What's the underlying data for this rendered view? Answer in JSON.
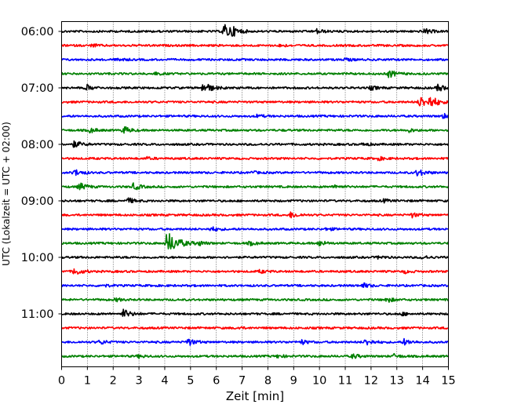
{
  "chart_data": {
    "type": "line",
    "title": "",
    "xlabel": "Zeit  [min]",
    "ylabel": "UTC (Lokalzeit = UTC + 02:00)",
    "xlim": [
      0,
      15
    ],
    "x_ticks": [
      "0",
      "1",
      "2",
      "3",
      "4",
      "5",
      "6",
      "7",
      "8",
      "9",
      "10",
      "11",
      "12",
      "13",
      "14",
      "15"
    ],
    "y_tick_labels": [
      "06:00",
      "07:00",
      "08:00",
      "09:00",
      "10:00",
      "11:00"
    ],
    "grid": "vertical dotted lines at each minute",
    "trace_colors": [
      "#000000",
      "#ff0000",
      "#0000ff",
      "#008000"
    ],
    "traces": [
      {
        "start": "06:00",
        "events": [
          {
            "t": 6.3,
            "amp": 1.0
          },
          {
            "t": 6.6,
            "amp": 0.4
          },
          {
            "t": 9.9,
            "amp": 0.3
          },
          {
            "t": 14.1,
            "amp": 0.35
          }
        ]
      },
      {
        "start": "06:15",
        "events": [
          {
            "t": 1.2,
            "amp": 0.2
          },
          {
            "t": 8.5,
            "amp": 0.15
          }
        ]
      },
      {
        "start": "06:30",
        "events": [
          {
            "t": 2.2,
            "amp": 0.2
          },
          {
            "t": 11.0,
            "amp": 0.2
          }
        ]
      },
      {
        "start": "06:45",
        "events": [
          {
            "t": 3.6,
            "amp": 0.15
          },
          {
            "t": 12.7,
            "amp": 0.5
          }
        ]
      },
      {
        "start": "07:00",
        "events": [
          {
            "t": 1.0,
            "amp": 0.35
          },
          {
            "t": 5.5,
            "amp": 0.8
          },
          {
            "t": 12.0,
            "amp": 0.25
          },
          {
            "t": 14.6,
            "amp": 0.45
          }
        ]
      },
      {
        "start": "07:15",
        "events": [
          {
            "t": 13.9,
            "amp": 0.8
          },
          {
            "t": 14.3,
            "amp": 0.7
          }
        ]
      },
      {
        "start": "07:30",
        "events": [
          {
            "t": 7.6,
            "amp": 0.2
          },
          {
            "t": 14.8,
            "amp": 0.3
          }
        ]
      },
      {
        "start": "07:45",
        "events": [
          {
            "t": 2.4,
            "amp": 0.5
          },
          {
            "t": 1.1,
            "amp": 0.3
          },
          {
            "t": 13.4,
            "amp": 0.3
          }
        ]
      },
      {
        "start": "08:00",
        "events": [
          {
            "t": 0.5,
            "amp": 0.45
          },
          {
            "t": 11.7,
            "amp": 0.2
          }
        ]
      },
      {
        "start": "08:15",
        "events": [
          {
            "t": 3.3,
            "amp": 0.15
          },
          {
            "t": 12.3,
            "amp": 0.2
          }
        ]
      },
      {
        "start": "08:30",
        "events": [
          {
            "t": 0.5,
            "amp": 0.45
          },
          {
            "t": 13.8,
            "amp": 0.5
          },
          {
            "t": 7.4,
            "amp": 0.15
          }
        ]
      },
      {
        "start": "08:45",
        "events": [
          {
            "t": 0.7,
            "amp": 0.5
          },
          {
            "t": 2.8,
            "amp": 0.45
          },
          {
            "t": 10.6,
            "amp": 0.25
          }
        ]
      },
      {
        "start": "09:00",
        "events": [
          {
            "t": 2.6,
            "amp": 0.35
          },
          {
            "t": 12.5,
            "amp": 0.2
          }
        ]
      },
      {
        "start": "09:15",
        "events": [
          {
            "t": 8.9,
            "amp": 0.4
          },
          {
            "t": 13.6,
            "amp": 0.3
          }
        ]
      },
      {
        "start": "09:30",
        "events": [
          {
            "t": 5.8,
            "amp": 0.3
          },
          {
            "t": 10.3,
            "amp": 0.2
          }
        ]
      },
      {
        "start": "09:45",
        "events": [
          {
            "t": 4.1,
            "amp": 1.6
          },
          {
            "t": 5.3,
            "amp": 0.35
          },
          {
            "t": 10.0,
            "amp": 0.35
          },
          {
            "t": 7.3,
            "amp": 0.25
          }
        ]
      },
      {
        "start": "10:00",
        "events": [
          {
            "t": 12.3,
            "amp": 0.2
          },
          {
            "t": 14.0,
            "amp": 0.2
          }
        ]
      },
      {
        "start": "10:15",
        "events": [
          {
            "t": 0.5,
            "amp": 0.5
          },
          {
            "t": 7.7,
            "amp": 0.2
          },
          {
            "t": 13.3,
            "amp": 0.2
          }
        ]
      },
      {
        "start": "10:30",
        "events": [
          {
            "t": 1.6,
            "amp": 0.2
          },
          {
            "t": 11.7,
            "amp": 0.3
          }
        ]
      },
      {
        "start": "10:45",
        "events": [
          {
            "t": 2.1,
            "amp": 0.2
          },
          {
            "t": 12.6,
            "amp": 0.35
          }
        ]
      },
      {
        "start": "11:00",
        "events": [
          {
            "t": 2.4,
            "amp": 0.6
          },
          {
            "t": 13.2,
            "amp": 0.2
          }
        ]
      },
      {
        "start": "11:15",
        "events": [
          {
            "t": 6.8,
            "amp": 0.15
          }
        ]
      },
      {
        "start": "11:30",
        "events": [
          {
            "t": 4.9,
            "amp": 0.5
          },
          {
            "t": 1.5,
            "amp": 0.3
          },
          {
            "t": 11.8,
            "amp": 0.45
          },
          {
            "t": 13.3,
            "amp": 0.4
          },
          {
            "t": 9.3,
            "amp": 0.3
          }
        ]
      },
      {
        "start": "11:45",
        "events": [
          {
            "t": 11.3,
            "amp": 0.3
          },
          {
            "t": 12.9,
            "amp": 0.25
          },
          {
            "t": 3.0,
            "amp": 0.2
          },
          {
            "t": 8.4,
            "amp": 0.2
          }
        ]
      }
    ]
  }
}
